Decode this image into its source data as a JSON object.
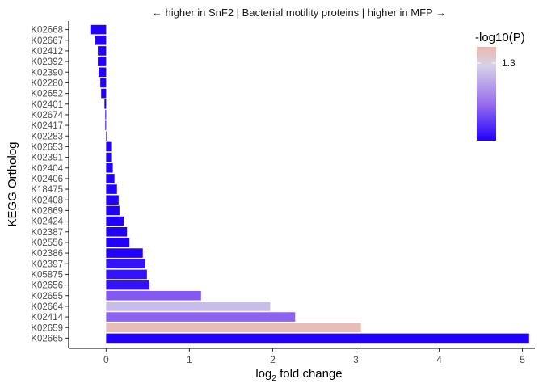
{
  "chart_data": {
    "type": "bar",
    "orientation": "horizontal",
    "title": "← higher in SnF2 | Bacterial motility proteins | higher in MFP →",
    "xlabel_main": "log",
    "xlabel_sub": "2",
    "xlabel_rest": " fold change",
    "ylabel": "KEGG Ortholog",
    "xlim": [
      -0.45,
      5.15
    ],
    "xticks": [
      0,
      1,
      2,
      3,
      4,
      5
    ],
    "xtick_labels": [
      "0",
      "1",
      "2",
      "3",
      "4",
      "5"
    ],
    "categories": [
      "K02668",
      "K02667",
      "K02412",
      "K02392",
      "K02390",
      "K02280",
      "K02652",
      "K02401",
      "K02674",
      "K02417",
      "K02283",
      "K02653",
      "K02391",
      "K02404",
      "K02406",
      "K18475",
      "K02408",
      "K02669",
      "K02424",
      "K02387",
      "K02556",
      "K02386",
      "K02397",
      "K05875",
      "K02656",
      "K02655",
      "K02664",
      "K02414",
      "K02659",
      "K02665"
    ],
    "values": [
      -0.19,
      -0.13,
      -0.1,
      -0.1,
      -0.09,
      -0.07,
      -0.06,
      -0.02,
      -0.01,
      -0.01,
      0.0,
      0.06,
      0.06,
      0.08,
      0.1,
      0.13,
      0.15,
      0.16,
      0.21,
      0.25,
      0.28,
      0.44,
      0.47,
      0.49,
      0.52,
      1.14,
      1.97,
      2.27,
      3.06,
      5.08
    ],
    "neglog10p": [
      0.1,
      0.1,
      0.1,
      0.1,
      0.1,
      0.1,
      0.1,
      0.1,
      0.1,
      0.1,
      0.1,
      0.1,
      0.1,
      0.1,
      0.1,
      0.1,
      0.1,
      0.1,
      0.1,
      0.1,
      0.1,
      0.1,
      0.2,
      0.2,
      0.2,
      0.6,
      1.2,
      0.65,
      1.6,
      0.1
    ],
    "legend": {
      "title": "-log10(P)",
      "tick_label": "1.3",
      "tick_value": 1.3,
      "range": [
        0.1,
        1.65
      ],
      "position": "top-right",
      "colors": [
        "#2200ff",
        "#9a6fee",
        "#d6d2e8",
        "#eab9af"
      ]
    }
  }
}
